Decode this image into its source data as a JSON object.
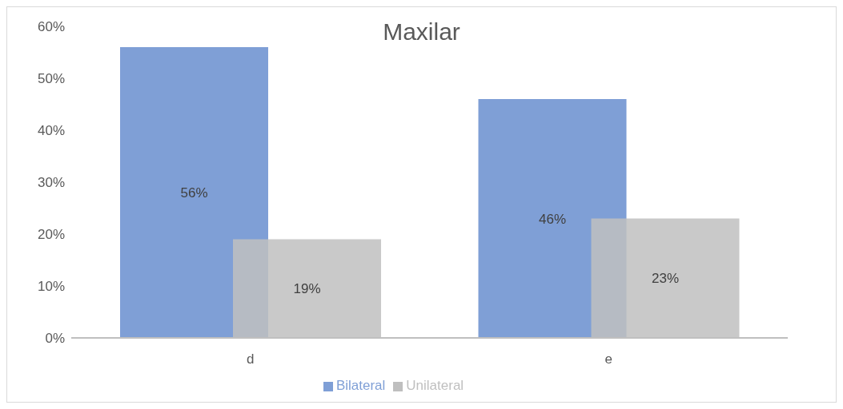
{
  "chart_data": {
    "type": "bar",
    "title": "Maxilar",
    "categories": [
      "d",
      "e"
    ],
    "series": [
      {
        "name": "Bilateral",
        "color": "#7f9fd6",
        "values": [
          56,
          46
        ],
        "value_labels": [
          "56%",
          "46%"
        ]
      },
      {
        "name": "Unilateral",
        "color": "#bfbfbf",
        "values": [
          19,
          23
        ],
        "value_labels": [
          "19%",
          "23%"
        ]
      }
    ],
    "ylim": [
      0,
      60
    ],
    "yticks": [
      {
        "value": 0,
        "label": "0%"
      },
      {
        "value": 10,
        "label": "10%"
      },
      {
        "value": 20,
        "label": "20%"
      },
      {
        "value": 30,
        "label": "30%"
      },
      {
        "value": 40,
        "label": "40%"
      },
      {
        "value": 50,
        "label": "50%"
      },
      {
        "value": 60,
        "label": "60%"
      }
    ],
    "grid": false,
    "legend": "bottom"
  }
}
